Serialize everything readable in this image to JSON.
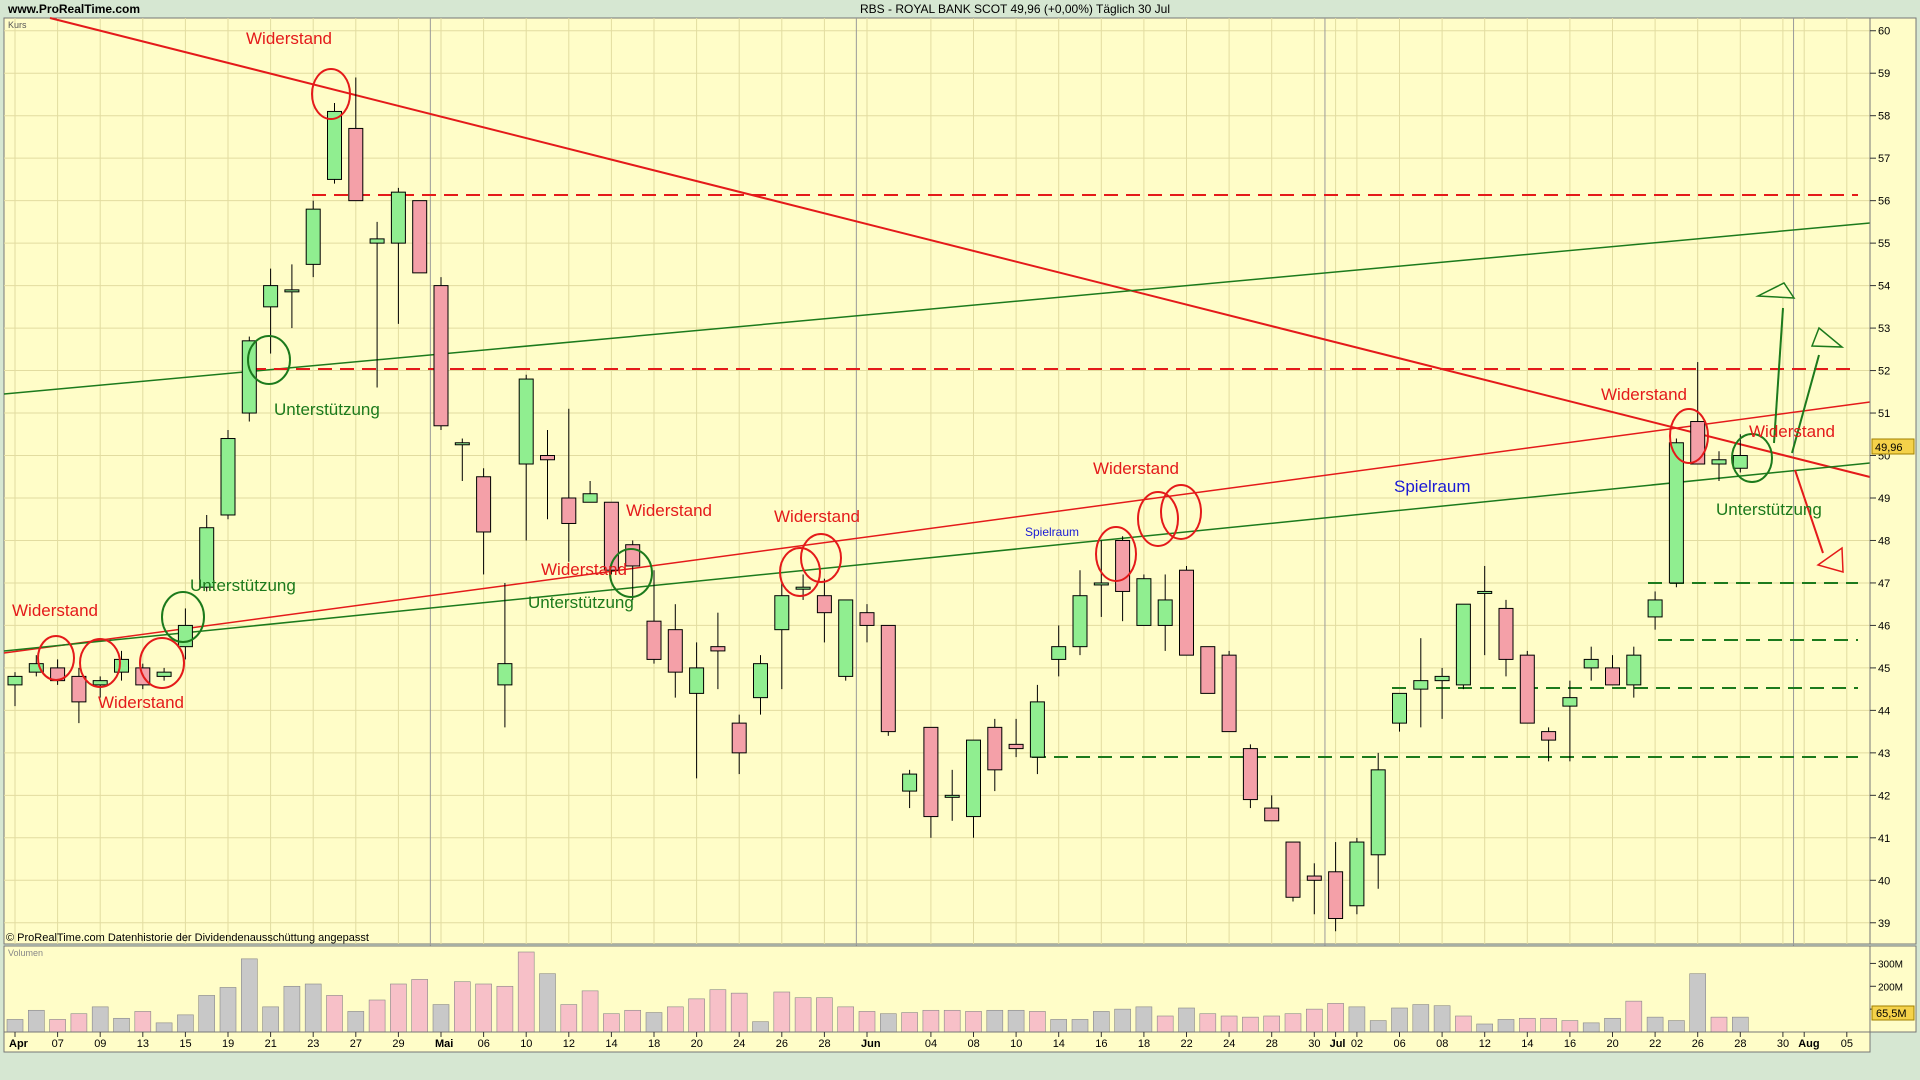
{
  "header": {
    "site": "www.ProRealTime.com",
    "title": "RBS - ROYAL BANK SCOT     49,96 (+0,00%)     Täglich  30 Jul"
  },
  "price_panel": {
    "label": "Kurs",
    "current_tag": "49,96"
  },
  "volume_panel": {
    "label": "Volumen",
    "current_tag": "65,5M"
  },
  "footer_note": "© ProRealTime.com  Datenhistorie der Dividendenausschüttung angepasst",
  "colors": {
    "up": "#90ee90",
    "down": "#f4a0a8",
    "resistance": "#e41a1a",
    "support": "#1c7a1c",
    "range": "#1a1ad6",
    "background": "#fffdc8"
  },
  "chart_data": {
    "type": "candlestick",
    "ylim": [
      38.5,
      60.3
    ],
    "yticks": [
      39,
      40,
      41,
      42,
      43,
      44,
      45,
      46,
      47,
      48,
      49,
      50,
      51,
      52,
      53,
      54,
      55,
      56,
      57,
      58,
      59,
      60
    ],
    "xticks": [
      {
        "i": 0,
        "label": "Apr"
      },
      {
        "i": 2,
        "label": "07"
      },
      {
        "i": 4,
        "label": "09"
      },
      {
        "i": 6,
        "label": "13"
      },
      {
        "i": 8,
        "label": "15"
      },
      {
        "i": 10,
        "label": "19"
      },
      {
        "i": 12,
        "label": "21"
      },
      {
        "i": 14,
        "label": "23"
      },
      {
        "i": 16,
        "label": "27"
      },
      {
        "i": 18,
        "label": "29"
      },
      {
        "i": 20,
        "label": "Mai"
      },
      {
        "i": 22,
        "label": "06"
      },
      {
        "i": 24,
        "label": "10"
      },
      {
        "i": 26,
        "label": "12"
      },
      {
        "i": 28,
        "label": "14"
      },
      {
        "i": 30,
        "label": "18"
      },
      {
        "i": 32,
        "label": "20"
      },
      {
        "i": 34,
        "label": "24"
      },
      {
        "i": 36,
        "label": "26"
      },
      {
        "i": 38,
        "label": "28"
      },
      {
        "i": 40,
        "label": "Jun"
      },
      {
        "i": 43,
        "label": "04"
      },
      {
        "i": 45,
        "label": "08"
      },
      {
        "i": 47,
        "label": "10"
      },
      {
        "i": 49,
        "label": "14"
      },
      {
        "i": 51,
        "label": "16"
      },
      {
        "i": 53,
        "label": "18"
      },
      {
        "i": 55,
        "label": "22"
      },
      {
        "i": 57,
        "label": "24"
      },
      {
        "i": 59,
        "label": "28"
      },
      {
        "i": 61,
        "label": "30"
      },
      {
        "i": 62,
        "label": "Jul"
      },
      {
        "i": 63,
        "label": "02"
      },
      {
        "i": 65,
        "label": "06"
      },
      {
        "i": 67,
        "label": "08"
      },
      {
        "i": 69,
        "label": "12"
      },
      {
        "i": 71,
        "label": "14"
      },
      {
        "i": 73,
        "label": "16"
      },
      {
        "i": 75,
        "label": "20"
      },
      {
        "i": 77,
        "label": "22"
      },
      {
        "i": 79,
        "label": "26"
      },
      {
        "i": 81,
        "label": "28"
      },
      {
        "i": 83,
        "label": "30"
      },
      {
        "i": 84,
        "label": "Aug"
      },
      {
        "i": 86,
        "label": "05"
      }
    ],
    "candles": [
      [
        44.6,
        44.9,
        44.1,
        44.8
      ],
      [
        44.9,
        45.3,
        44.8,
        45.1
      ],
      [
        45.0,
        45.2,
        44.6,
        44.7
      ],
      [
        44.8,
        45.0,
        43.7,
        44.2
      ],
      [
        44.6,
        44.8,
        44.3,
        44.7
      ],
      [
        44.9,
        45.4,
        44.7,
        45.2
      ],
      [
        45.0,
        45.1,
        44.5,
        44.6
      ],
      [
        44.8,
        45.0,
        44.7,
        44.9
      ],
      [
        45.5,
        46.4,
        45.2,
        46.0
      ],
      [
        46.9,
        48.6,
        46.8,
        48.3
      ],
      [
        48.6,
        50.6,
        48.5,
        50.4
      ],
      [
        51.0,
        52.8,
        50.8,
        52.7
      ],
      [
        53.5,
        54.4,
        52.4,
        54.0
      ],
      [
        53.9,
        54.5,
        53.0,
        53.9
      ],
      [
        54.5,
        56.0,
        54.2,
        55.8
      ],
      [
        56.5,
        58.3,
        56.4,
        58.1
      ],
      [
        57.7,
        58.9,
        56.0,
        56.0
      ],
      [
        55.0,
        55.5,
        51.6,
        55.1
      ],
      [
        55.0,
        56.3,
        53.1,
        56.2
      ],
      [
        56.0,
        56.0,
        54.3,
        54.3
      ],
      [
        54.0,
        54.2,
        50.6,
        50.7
      ],
      [
        50.3,
        50.4,
        49.4,
        50.3
      ],
      [
        49.5,
        49.7,
        47.2,
        48.2
      ],
      [
        44.6,
        47.0,
        43.6,
        45.1
      ],
      [
        49.8,
        51.9,
        48.0,
        51.8
      ],
      [
        50.0,
        50.6,
        48.5,
        49.9
      ],
      [
        49.0,
        51.1,
        47.5,
        48.4
      ],
      [
        48.9,
        49.4,
        48.9,
        49.1
      ],
      [
        48.9,
        48.9,
        47.2,
        47.3
      ],
      [
        47.9,
        48.0,
        46.6,
        47.4
      ],
      [
        46.1,
        47.3,
        45.1,
        45.2
      ],
      [
        45.9,
        46.5,
        44.3,
        44.9
      ],
      [
        44.4,
        45.6,
        42.4,
        45.0
      ],
      [
        45.5,
        46.3,
        44.5,
        45.4
      ],
      [
        43.7,
        43.9,
        42.5,
        43.0
      ],
      [
        44.3,
        45.3,
        43.9,
        45.1
      ],
      [
        45.9,
        47.0,
        44.5,
        46.7
      ],
      [
        46.9,
        47.2,
        46.6,
        46.9
      ],
      [
        46.7,
        47.1,
        45.6,
        46.3
      ],
      [
        44.8,
        46.4,
        44.7,
        46.6
      ],
      [
        46.3,
        46.5,
        45.6,
        46.0
      ],
      [
        46.0,
        46.0,
        43.4,
        43.5
      ],
      [
        42.1,
        42.6,
        41.7,
        42.5
      ],
      [
        43.6,
        43.6,
        41.0,
        41.5
      ],
      [
        42.0,
        42.6,
        41.4,
        42.0
      ],
      [
        41.5,
        43.3,
        41.0,
        43.3
      ],
      [
        43.6,
        43.8,
        42.1,
        42.6
      ],
      [
        43.2,
        43.8,
        42.9,
        43.1
      ],
      [
        42.9,
        44.6,
        42.5,
        44.2
      ],
      [
        45.2,
        46.0,
        44.8,
        45.5
      ],
      [
        45.5,
        47.3,
        45.3,
        46.7
      ],
      [
        47.0,
        48.0,
        46.2,
        47.0
      ],
      [
        48.0,
        48.1,
        46.1,
        46.8
      ],
      [
        46.0,
        47.2,
        46.1,
        47.1
      ],
      [
        46.0,
        47.2,
        45.4,
        46.6
      ],
      [
        47.3,
        47.4,
        45.4,
        45.3
      ],
      [
        45.5,
        45.5,
        44.4,
        44.4
      ],
      [
        45.3,
        45.4,
        43.5,
        43.5
      ],
      [
        43.1,
        43.2,
        41.7,
        41.9
      ],
      [
        41.7,
        42.0,
        41.4,
        41.4
      ],
      [
        40.9,
        40.9,
        39.5,
        39.6
      ],
      [
        40.1,
        40.4,
        39.2,
        40.0
      ],
      [
        40.2,
        40.9,
        38.8,
        39.1
      ],
      [
        39.4,
        41.0,
        39.2,
        40.9
      ],
      [
        40.6,
        43.0,
        39.8,
        42.6
      ],
      [
        43.7,
        44.4,
        43.5,
        44.4
      ],
      [
        44.5,
        45.7,
        43.6,
        44.7
      ],
      [
        44.7,
        45.0,
        43.8,
        44.8
      ],
      [
        44.6,
        46.4,
        44.5,
        46.5
      ],
      [
        46.8,
        47.4,
        45.3,
        46.8
      ],
      [
        46.4,
        46.6,
        44.8,
        45.2
      ],
      [
        45.3,
        45.4,
        43.7,
        43.7
      ],
      [
        43.5,
        43.6,
        42.8,
        43.3
      ],
      [
        44.1,
        44.7,
        42.8,
        44.3
      ],
      [
        45.0,
        45.5,
        44.7,
        45.2
      ],
      [
        45.0,
        45.3,
        44.6,
        44.6
      ],
      [
        44.6,
        45.5,
        44.3,
        45.3
      ],
      [
        46.2,
        46.8,
        45.9,
        46.6
      ],
      [
        47.0,
        50.4,
        46.9,
        50.3
      ],
      [
        50.8,
        52.2,
        49.8,
        49.8
      ],
      [
        49.8,
        50.1,
        49.4,
        49.9
      ],
      [
        49.7,
        50.5,
        49.6,
        50.0
      ]
    ],
    "volume_ylim": [
      0,
      350
    ],
    "volume_ticks": [
      {
        "v": 100,
        "label": "100M"
      },
      {
        "v": 200,
        "label": "200M"
      },
      {
        "v": 300,
        "label": "300M"
      }
    ],
    "volume": [
      [
        55,
        "g"
      ],
      [
        95,
        "g"
      ],
      [
        55,
        "p"
      ],
      [
        80,
        "p"
      ],
      [
        110,
        "g"
      ],
      [
        60,
        "g"
      ],
      [
        90,
        "p"
      ],
      [
        40,
        "g"
      ],
      [
        75,
        "g"
      ],
      [
        160,
        "g"
      ],
      [
        195,
        "g"
      ],
      [
        320,
        "g"
      ],
      [
        110,
        "g"
      ],
      [
        200,
        "g"
      ],
      [
        210,
        "g"
      ],
      [
        160,
        "p"
      ],
      [
        90,
        "g"
      ],
      [
        140,
        "p"
      ],
      [
        210,
        "p"
      ],
      [
        230,
        "p"
      ],
      [
        120,
        "g"
      ],
      [
        220,
        "p"
      ],
      [
        210,
        "p"
      ],
      [
        200,
        "p"
      ],
      [
        390,
        "p"
      ],
      [
        255,
        "g"
      ],
      [
        120,
        "p"
      ],
      [
        180,
        "p"
      ],
      [
        80,
        "p"
      ],
      [
        95,
        "p"
      ],
      [
        85,
        "g"
      ],
      [
        110,
        "p"
      ],
      [
        145,
        "p"
      ],
      [
        185,
        "p"
      ],
      [
        170,
        "p"
      ],
      [
        45,
        "g"
      ],
      [
        175,
        "p"
      ],
      [
        150,
        "p"
      ],
      [
        150,
        "p"
      ],
      [
        110,
        "p"
      ],
      [
        90,
        "p"
      ],
      [
        80,
        "g"
      ],
      [
        85,
        "p"
      ],
      [
        95,
        "p"
      ],
      [
        95,
        "p"
      ],
      [
        90,
        "p"
      ],
      [
        95,
        "g"
      ],
      [
        95,
        "g"
      ],
      [
        90,
        "p"
      ],
      [
        55,
        "g"
      ],
      [
        55,
        "g"
      ],
      [
        90,
        "g"
      ],
      [
        100,
        "g"
      ],
      [
        110,
        "g"
      ],
      [
        70,
        "p"
      ],
      [
        105,
        "g"
      ],
      [
        80,
        "p"
      ],
      [
        70,
        "p"
      ],
      [
        65,
        "p"
      ],
      [
        70,
        "p"
      ],
      [
        80,
        "p"
      ],
      [
        100,
        "p"
      ],
      [
        125,
        "p"
      ],
      [
        110,
        "g"
      ],
      [
        50,
        "g"
      ],
      [
        105,
        "g"
      ],
      [
        120,
        "g"
      ],
      [
        115,
        "g"
      ],
      [
        70,
        "p"
      ],
      [
        35,
        "g"
      ],
      [
        55,
        "g"
      ],
      [
        60,
        "p"
      ],
      [
        60,
        "p"
      ],
      [
        50,
        "p"
      ],
      [
        40,
        "g"
      ],
      [
        60,
        "g"
      ],
      [
        135,
        "p"
      ],
      [
        65,
        "g"
      ],
      [
        50,
        "g"
      ],
      [
        255,
        "g"
      ],
      [
        65,
        "p"
      ],
      [
        65,
        "g"
      ]
    ]
  },
  "annotations": {
    "widerstand": "Widerstand",
    "unterstuetzung": "Unterstützung",
    "spielraum": "Spielraum"
  }
}
